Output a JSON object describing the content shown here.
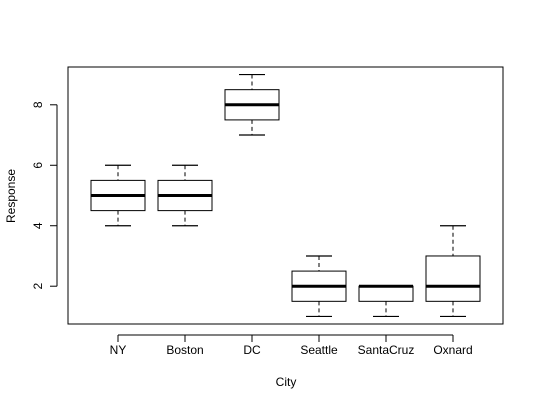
{
  "chart_data": {
    "type": "boxplot",
    "xlabel": "City",
    "ylabel": "Response",
    "categories": [
      "NY",
      "Boston",
      "DC",
      "Seattle",
      "SantaCruz",
      "Oxnard"
    ],
    "boxes": [
      {
        "name": "NY",
        "whisker_low": 4,
        "q1": 4.5,
        "median": 5,
        "q3": 5.5,
        "whisker_high": 6
      },
      {
        "name": "Boston",
        "whisker_low": 4,
        "q1": 4.5,
        "median": 5,
        "q3": 5.5,
        "whisker_high": 6
      },
      {
        "name": "DC",
        "whisker_low": 7,
        "q1": 7.5,
        "median": 8,
        "q3": 8.5,
        "whisker_high": 9
      },
      {
        "name": "Seattle",
        "whisker_low": 1,
        "q1": 1.5,
        "median": 2,
        "q3": 2.5,
        "whisker_high": 3
      },
      {
        "name": "SantaCruz",
        "whisker_low": 1,
        "q1": 1.5,
        "median": 2,
        "q3": 2,
        "whisker_high": 2
      },
      {
        "name": "Oxnard",
        "whisker_low": 1,
        "q1": 1.5,
        "median": 2,
        "q3": 3,
        "whisker_high": 4
      }
    ],
    "ylim": [
      0.75,
      9.25
    ],
    "yticks": [
      2,
      4,
      6,
      8
    ],
    "grid": false,
    "legend": "none"
  }
}
